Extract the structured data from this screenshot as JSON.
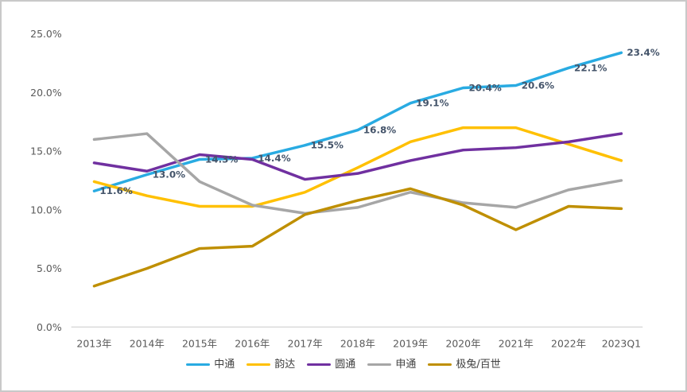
{
  "chart_data": {
    "type": "line",
    "title": "",
    "categories": [
      "2013年",
      "2014年",
      "2015年",
      "2016年",
      "2017年",
      "2018年",
      "2019年",
      "2020年",
      "2021年",
      "2022年",
      "2023Q1"
    ],
    "series": [
      {
        "name": "中通",
        "color": "#29ABE2",
        "values": [
          11.6,
          13.0,
          14.3,
          14.4,
          15.5,
          16.8,
          19.1,
          20.4,
          20.6,
          22.1,
          23.4
        ]
      },
      {
        "name": "韵达",
        "color": "#FFC000",
        "values": [
          12.4,
          11.2,
          10.3,
          10.3,
          11.5,
          13.6,
          15.8,
          17.0,
          17.0,
          15.6,
          14.2
        ]
      },
      {
        "name": "圆通",
        "color": "#7030A0",
        "values": [
          14.0,
          13.3,
          14.7,
          14.3,
          12.6,
          13.1,
          14.2,
          15.1,
          15.3,
          15.8,
          16.5
        ]
      },
      {
        "name": "申通",
        "color": "#A6A6A6",
        "values": [
          16.0,
          16.5,
          12.4,
          10.4,
          9.7,
          10.2,
          11.5,
          10.6,
          10.2,
          11.7,
          12.5
        ]
      },
      {
        "name": "极兔/百世",
        "color": "#BF8F00",
        "values": [
          3.5,
          5.0,
          6.7,
          6.9,
          9.6,
          10.8,
          11.8,
          10.4,
          8.3,
          10.3,
          10.1
        ]
      }
    ],
    "ylim": [
      0,
      25
    ],
    "ytick_values": [
      0,
      5,
      10,
      15,
      20,
      25
    ],
    "ytick_labels": [
      "0.0%",
      "5.0%",
      "10.0%",
      "15.0%",
      "20.0%",
      "25.0%"
    ],
    "data_labels": {
      "series_index": 0,
      "color": "#44546A",
      "values": [
        "11.6%",
        "13.0%",
        "14.3%",
        "14.4%",
        "15.5%",
        "16.8%",
        "19.1%",
        "20.4%",
        "20.6%",
        "22.1%",
        "23.4%"
      ]
    },
    "grid": false,
    "legend_position": "bottom",
    "axis_line_color": "#D9D9D9",
    "tick_label_color": "#595959",
    "legend_text_color": "#404040",
    "background": "#FFFFFF",
    "frame_border_color": "#C9C9C9"
  },
  "legend": {
    "items": [
      "中通",
      "韵达",
      "圆通",
      "申通",
      "极兔/百世"
    ]
  }
}
